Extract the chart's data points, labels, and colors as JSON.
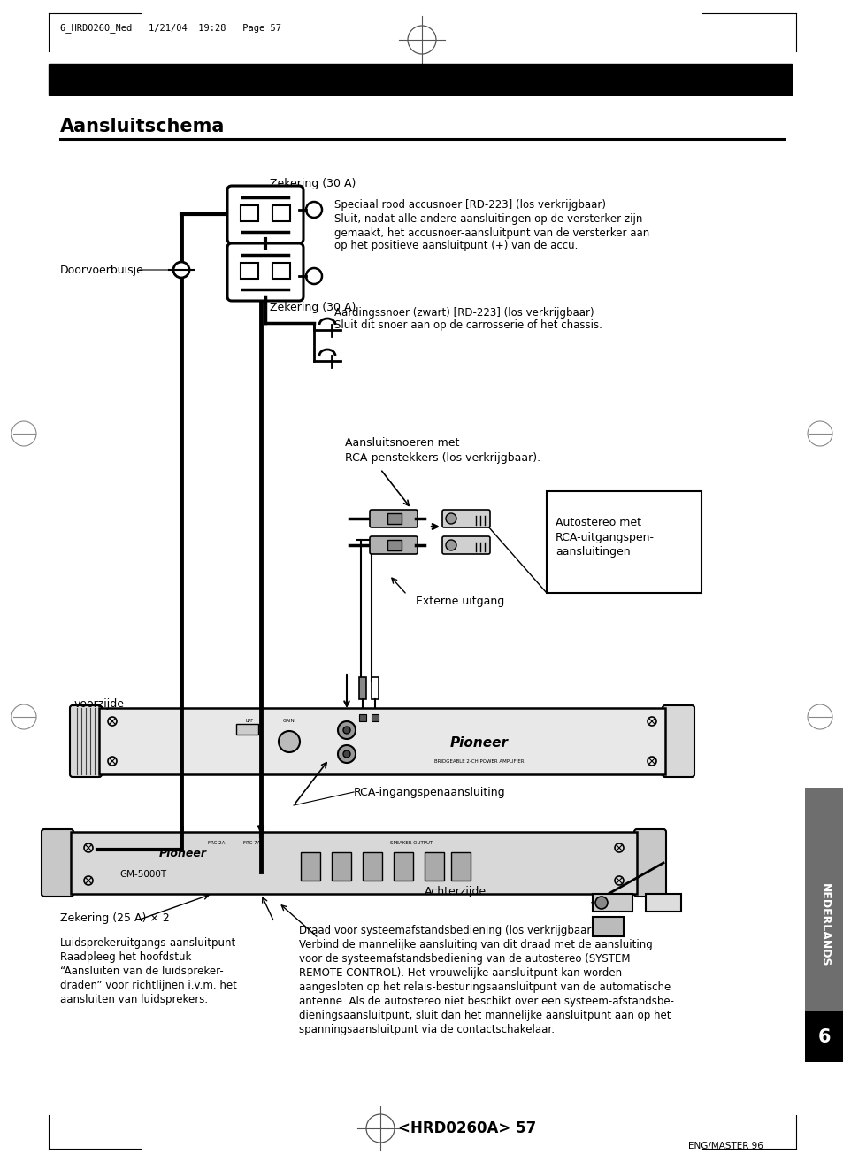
{
  "page_bg": "#ffffff",
  "header_text": "6_HRD0260_Ned   1/21/04  19:28   Page 57",
  "title": "Aansluitschema",
  "label_zekering_top": "Zekering (30 A)",
  "label_zekering_bottom": "Zekering (30 A)",
  "label_doorvoerbuisje": "Doorvoerbuisje",
  "label_rood_line1": "Speciaal rood accusnoer [RD-223] (los verkrijgbaar)",
  "label_rood_line2": "Sluit, nadat alle andere aansluitingen op de versterker zijn",
  "label_rood_line3": "gemaakt, het accusnoer-aansluitpunt van de versterker aan",
  "label_rood_line4": "op het positieve aansluitpunt (+) van de accu.",
  "label_aarding_line1": "Aardingssnoer (zwart) [RD-223] (los verkrijgbaar)",
  "label_aarding_line2": "Sluit dit snoer aan op de carrosserie of het chassis.",
  "label_aansluitsnoeren_line1": "Aansluitsnoeren met",
  "label_aansluitsnoeren_line2": "RCA-penstekkers (los verkrijgbaar).",
  "label_autostereo_line1": "Autostereo met",
  "label_autostereo_line2": "RCA-uitgangspen-",
  "label_autostereo_line3": "aansluitingen",
  "label_externe_uitgang": "Externe uitgang",
  "label_voorzijde": "voorzijde",
  "label_rca_ingang": "RCA-ingangspenaansluiting",
  "label_achterzijde": "Achterzijde",
  "label_zekering_25": "Zekering (25 A) × 2",
  "label_luidspreker_line1": "Luidsprekeruitgangs-aansluitpunt",
  "label_luidspreker_line2": "Raadpleeg het hoofdstuk",
  "label_luidspreker_line3": "“Aansluiten van de luidspreker-",
  "label_luidspreker_line4": "draden” voor richtlijnen i.v.m. het",
  "label_luidspreker_line5": "aansluiten van luidsprekers.",
  "label_draad_line1": "Draad voor systeemafstandsbediening (los verkrijgbaar)",
  "label_draad_line2": "Verbind de mannelijke aansluiting van dit draad met de aansluiting",
  "label_draad_line3": "voor de systeemafstandsbediening van de autostereo (SYSTEM",
  "label_draad_line4": "REMOTE CONTROL). Het vrouwelijke aansluitpunt kan worden",
  "label_draad_line5": "aangesloten op het relais-besturingsaansluitpunt van de automatische",
  "label_draad_line6": "antenne. Als de autostereo niet beschikt over een systeem-afstandsbe-",
  "label_draad_line7": "dieningsaansluitpunt, sluit dan het mannelijke aansluitpunt aan op het",
  "label_draad_line8": "spanningsaansluitpunt via de contactschakelaar.",
  "label_nederlands": "NEDERLANDS",
  "label_page_num": "<HRD0260A> 57",
  "label_eng_master": "ENG/MASTER 96",
  "sidebar_number": "6"
}
